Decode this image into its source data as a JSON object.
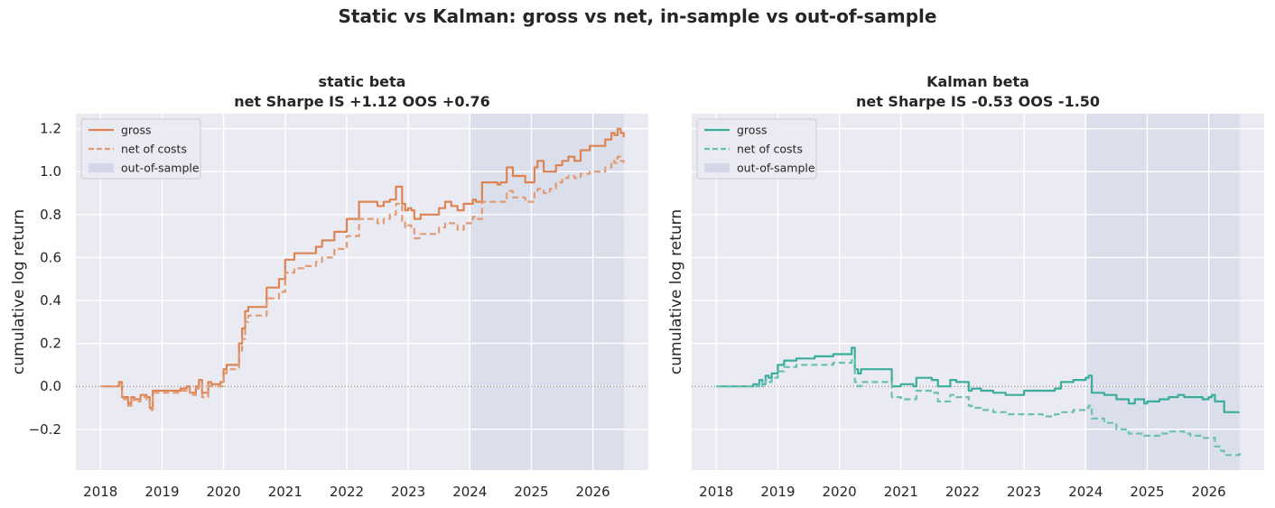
{
  "figure": {
    "suptitle": "Static vs Kalman: gross vs net, in-sample vs out-of-sample"
  },
  "chart_data": [
    {
      "type": "line",
      "title": "static beta",
      "subtitle": "net Sharpe  IS +1.12   OOS +0.76",
      "xlabel": "",
      "ylabel": "cumulative log return",
      "xlim": [
        2017.6,
        2026.9
      ],
      "ylim": [
        -0.39,
        1.27
      ],
      "x_ticks": [
        "2018",
        "2019",
        "2020",
        "2021",
        "2022",
        "2023",
        "2024",
        "2025",
        "2026"
      ],
      "y_ticks": [
        -0.2,
        0.0,
        0.2,
        0.4,
        0.6,
        0.8,
        1.0,
        1.2
      ],
      "y_tick_labels": [
        "−0.2",
        "0.0",
        "0.2",
        "0.4",
        "0.6",
        "0.8",
        "1.0",
        "1.2"
      ],
      "zero_line": true,
      "grid": true,
      "legend_position": "top-left",
      "out_of_sample": {
        "label": "out-of-sample",
        "start": 2024.0,
        "end": 2026.5
      },
      "series": [
        {
          "name": "gross",
          "style": "solid",
          "color": "#dd8452",
          "x": [
            2018.0,
            2018.25,
            2018.3,
            2018.35,
            2018.45,
            2018.5,
            2018.55,
            2018.65,
            2018.75,
            2018.8,
            2018.85,
            2019.0,
            2019.3,
            2019.4,
            2019.45,
            2019.55,
            2019.6,
            2019.65,
            2019.75,
            2019.8,
            2019.95,
            2020.0,
            2020.05,
            2020.15,
            2020.25,
            2020.3,
            2020.35,
            2020.4,
            2020.55,
            2020.7,
            2020.8,
            2020.9,
            2021.0,
            2021.1,
            2021.15,
            2021.3,
            2021.5,
            2021.6,
            2021.8,
            2021.9,
            2022.0,
            2022.2,
            2022.3,
            2022.5,
            2022.6,
            2022.7,
            2022.8,
            2022.9,
            2022.95,
            2023.0,
            2023.05,
            2023.1,
            2023.2,
            2023.3,
            2023.5,
            2023.6,
            2023.7,
            2023.8,
            2023.9,
            2024.0,
            2024.05,
            2024.1,
            2024.2,
            2024.3,
            2024.45,
            2024.5,
            2024.6,
            2024.7,
            2024.8,
            2024.9,
            2025.0,
            2025.05,
            2025.1,
            2025.2,
            2025.3,
            2025.4,
            2025.5,
            2025.6,
            2025.7,
            2025.8,
            2025.95,
            2026.1,
            2026.2,
            2026.3,
            2026.35,
            2026.4,
            2026.45,
            2026.5
          ],
          "y": [
            0.0,
            0.0,
            0.02,
            -0.05,
            -0.08,
            -0.05,
            -0.06,
            -0.04,
            -0.05,
            -0.1,
            -0.02,
            -0.02,
            -0.01,
            0.0,
            -0.03,
            0.0,
            0.03,
            -0.03,
            0.02,
            0.01,
            0.02,
            0.08,
            0.1,
            0.1,
            0.2,
            0.27,
            0.35,
            0.37,
            0.37,
            0.46,
            0.46,
            0.5,
            0.59,
            0.59,
            0.62,
            0.62,
            0.65,
            0.68,
            0.72,
            0.72,
            0.78,
            0.86,
            0.86,
            0.84,
            0.86,
            0.87,
            0.93,
            0.85,
            0.82,
            0.83,
            0.82,
            0.78,
            0.8,
            0.8,
            0.83,
            0.86,
            0.84,
            0.82,
            0.85,
            0.85,
            0.87,
            0.86,
            0.95,
            0.95,
            0.94,
            0.95,
            1.02,
            0.98,
            0.98,
            0.95,
            0.95,
            1.02,
            1.05,
            1.0,
            1.0,
            1.03,
            1.05,
            1.07,
            1.05,
            1.1,
            1.12,
            1.12,
            1.15,
            1.18,
            1.17,
            1.2,
            1.18,
            1.16
          ]
        },
        {
          "name": "net of costs",
          "style": "dashed",
          "color": "#e19c76",
          "x": [
            2018.0,
            2018.25,
            2018.3,
            2018.35,
            2018.45,
            2018.5,
            2018.55,
            2018.65,
            2018.75,
            2018.8,
            2018.85,
            2019.0,
            2019.3,
            2019.4,
            2019.45,
            2019.55,
            2019.6,
            2019.65,
            2019.75,
            2019.8,
            2019.95,
            2020.0,
            2020.05,
            2020.15,
            2020.25,
            2020.3,
            2020.35,
            2020.4,
            2020.55,
            2020.7,
            2020.8,
            2020.9,
            2021.0,
            2021.1,
            2021.15,
            2021.3,
            2021.5,
            2021.6,
            2021.8,
            2021.9,
            2022.0,
            2022.2,
            2022.3,
            2022.5,
            2022.6,
            2022.7,
            2022.8,
            2022.9,
            2022.95,
            2023.0,
            2023.05,
            2023.1,
            2023.2,
            2023.3,
            2023.5,
            2023.6,
            2023.7,
            2023.8,
            2023.9,
            2024.0,
            2024.05,
            2024.1,
            2024.2,
            2024.3,
            2024.45,
            2024.5,
            2024.6,
            2024.7,
            2024.8,
            2024.9,
            2025.0,
            2025.05,
            2025.1,
            2025.2,
            2025.3,
            2025.4,
            2025.5,
            2025.6,
            2025.7,
            2025.8,
            2025.95,
            2026.1,
            2026.2,
            2026.3,
            2026.35,
            2026.4,
            2026.45,
            2026.5
          ],
          "y": [
            0.0,
            0.0,
            0.01,
            -0.06,
            -0.09,
            -0.06,
            -0.07,
            -0.05,
            -0.06,
            -0.11,
            -0.03,
            -0.03,
            -0.02,
            -0.01,
            -0.04,
            -0.01,
            0.01,
            -0.05,
            0.0,
            0.0,
            0.0,
            0.06,
            0.08,
            0.08,
            0.16,
            0.22,
            0.3,
            0.33,
            0.33,
            0.41,
            0.41,
            0.44,
            0.53,
            0.53,
            0.55,
            0.56,
            0.58,
            0.6,
            0.64,
            0.64,
            0.7,
            0.78,
            0.78,
            0.76,
            0.78,
            0.8,
            0.85,
            0.77,
            0.74,
            0.75,
            0.74,
            0.69,
            0.71,
            0.71,
            0.74,
            0.76,
            0.76,
            0.73,
            0.76,
            0.76,
            0.79,
            0.78,
            0.86,
            0.86,
            0.86,
            0.86,
            0.91,
            0.88,
            0.88,
            0.86,
            0.86,
            0.9,
            0.92,
            0.9,
            0.92,
            0.95,
            0.97,
            0.98,
            0.97,
            0.99,
            1.0,
            1.0,
            1.02,
            1.05,
            1.04,
            1.07,
            1.05,
            1.04
          ]
        }
      ]
    },
    {
      "type": "line",
      "title": "Kalman beta",
      "subtitle": "net Sharpe  IS -0.53   OOS -1.50",
      "xlabel": "",
      "ylabel": "cumulative log return",
      "xlim": [
        2017.6,
        2026.9
      ],
      "ylim": [
        -0.39,
        1.27
      ],
      "x_ticks": [
        "2018",
        "2019",
        "2020",
        "2021",
        "2022",
        "2023",
        "2024",
        "2025",
        "2026"
      ],
      "zero_line": true,
      "grid": true,
      "legend_position": "top-left",
      "out_of_sample": {
        "label": "out-of-sample",
        "start": 2024.0,
        "end": 2026.5
      },
      "series": [
        {
          "name": "gross",
          "style": "solid",
          "color": "#3aae9b",
          "x": [
            2018.0,
            2018.55,
            2018.6,
            2018.7,
            2018.75,
            2018.8,
            2018.85,
            2018.9,
            2019.0,
            2019.1,
            2019.3,
            2019.6,
            2019.9,
            2020.1,
            2020.2,
            2020.25,
            2020.3,
            2020.35,
            2020.8,
            2020.85,
            2021.0,
            2021.2,
            2021.25,
            2021.5,
            2021.6,
            2021.8,
            2021.9,
            2022.1,
            2022.15,
            2022.3,
            2022.5,
            2022.7,
            2023.0,
            2023.3,
            2023.5,
            2023.6,
            2023.8,
            2024.0,
            2024.05,
            2024.1,
            2024.3,
            2024.5,
            2024.7,
            2024.8,
            2024.95,
            2025.0,
            2025.2,
            2025.35,
            2025.5,
            2025.6,
            2025.7,
            2025.9,
            2026.0,
            2026.05,
            2026.1,
            2026.2,
            2026.25,
            2026.5
          ],
          "y": [
            0.0,
            0.0,
            0.01,
            0.03,
            0.01,
            0.05,
            0.04,
            0.06,
            0.1,
            0.12,
            0.13,
            0.14,
            0.15,
            0.15,
            0.18,
            0.08,
            0.06,
            0.08,
            0.08,
            0.0,
            0.01,
            0.0,
            0.04,
            0.03,
            0.0,
            0.03,
            0.02,
            -0.02,
            -0.01,
            -0.02,
            -0.03,
            -0.04,
            -0.02,
            -0.02,
            -0.01,
            0.02,
            0.03,
            0.04,
            0.05,
            -0.03,
            -0.04,
            -0.06,
            -0.08,
            -0.06,
            -0.08,
            -0.07,
            -0.06,
            -0.05,
            -0.04,
            -0.05,
            -0.05,
            -0.06,
            -0.05,
            -0.04,
            -0.07,
            -0.07,
            -0.12,
            -0.12
          ]
        },
        {
          "name": "net of costs",
          "style": "dashed",
          "color": "#6cc0b2",
          "x": [
            2018.0,
            2018.55,
            2018.6,
            2018.7,
            2018.75,
            2018.8,
            2018.85,
            2018.9,
            2019.0,
            2019.1,
            2019.3,
            2019.6,
            2019.9,
            2020.1,
            2020.2,
            2020.25,
            2020.3,
            2020.35,
            2020.8,
            2020.85,
            2021.0,
            2021.2,
            2021.25,
            2021.5,
            2021.6,
            2021.8,
            2021.9,
            2022.1,
            2022.15,
            2022.3,
            2022.5,
            2022.7,
            2023.0,
            2023.3,
            2023.5,
            2023.6,
            2023.8,
            2024.0,
            2024.05,
            2024.1,
            2024.3,
            2024.5,
            2024.7,
            2024.8,
            2024.95,
            2025.0,
            2025.2,
            2025.35,
            2025.5,
            2025.6,
            2025.7,
            2025.9,
            2026.0,
            2026.05,
            2026.1,
            2026.2,
            2026.25,
            2026.5
          ],
          "y": [
            0.0,
            0.0,
            0.0,
            0.02,
            0.0,
            0.03,
            0.02,
            0.04,
            0.07,
            0.09,
            0.1,
            0.1,
            0.11,
            0.11,
            0.13,
            0.02,
            0.0,
            0.02,
            0.02,
            -0.05,
            -0.06,
            -0.06,
            -0.02,
            -0.03,
            -0.07,
            -0.04,
            -0.05,
            -0.09,
            -0.1,
            -0.11,
            -0.12,
            -0.13,
            -0.13,
            -0.14,
            -0.13,
            -0.12,
            -0.11,
            -0.1,
            -0.09,
            -0.15,
            -0.17,
            -0.2,
            -0.22,
            -0.22,
            -0.23,
            -0.23,
            -0.22,
            -0.21,
            -0.21,
            -0.22,
            -0.23,
            -0.24,
            -0.24,
            -0.24,
            -0.28,
            -0.3,
            -0.32,
            -0.31
          ]
        }
      ]
    }
  ]
}
